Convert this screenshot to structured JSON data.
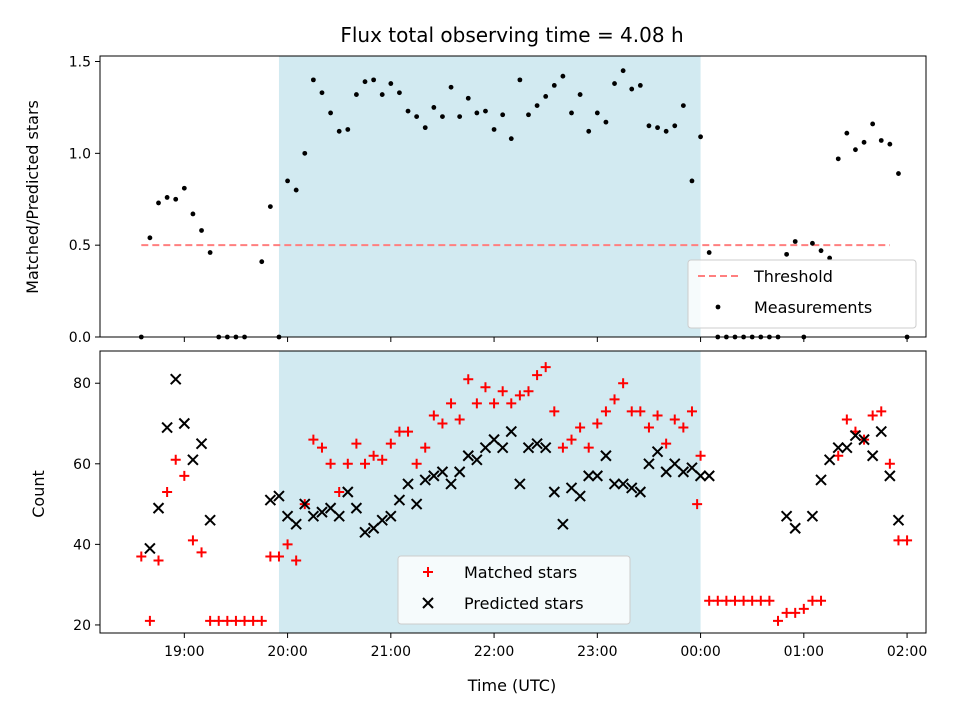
{
  "title": "Flux total observing time = 4.08 h",
  "colors": {
    "shade": "#add8e6",
    "threshold": "#ff7f7f",
    "measurement": "#000000",
    "matched": "#ff0000",
    "predicted": "#000000"
  },
  "chart_data": [
    {
      "type": "scatter",
      "ylabel": "Matched/Predicted stars",
      "xlabel": "",
      "ylim": [
        0,
        1.53
      ],
      "yticks": [
        "0.0",
        "0.5",
        "1.0",
        "1.5"
      ],
      "ytick_values": [
        0,
        0.5,
        1.0,
        1.5
      ],
      "shaded_interval": [
        "19:55",
        "00:00"
      ],
      "legend_position": "lower right",
      "legend": [
        "Threshold",
        "Measurements"
      ],
      "threshold": {
        "name": "Threshold",
        "value": 0.5,
        "x_range": [
          "18:35",
          "01:50"
        ],
        "style": "dashed"
      },
      "series": [
        {
          "name": "Measurements",
          "marker": "dot",
          "points": [
            [
              "18:35",
              0.0
            ],
            [
              "18:40",
              0.54
            ],
            [
              "18:45",
              0.73
            ],
            [
              "18:50",
              0.76
            ],
            [
              "18:55",
              0.75
            ],
            [
              "19:00",
              0.81
            ],
            [
              "19:05",
              0.67
            ],
            [
              "19:10",
              0.58
            ],
            [
              "19:15",
              0.46
            ],
            [
              "19:20",
              0.0
            ],
            [
              "19:25",
              0.0
            ],
            [
              "19:30",
              0.0
            ],
            [
              "19:35",
              0.0
            ],
            [
              "19:45",
              0.41
            ],
            [
              "19:50",
              0.71
            ],
            [
              "19:55",
              0.0
            ],
            [
              "20:00",
              0.85
            ],
            [
              "20:05",
              0.8
            ],
            [
              "20:10",
              1.0
            ],
            [
              "20:15",
              1.4
            ],
            [
              "20:20",
              1.33
            ],
            [
              "20:25",
              1.22
            ],
            [
              "20:30",
              1.12
            ],
            [
              "20:35",
              1.13
            ],
            [
              "20:40",
              1.32
            ],
            [
              "20:45",
              1.39
            ],
            [
              "20:50",
              1.4
            ],
            [
              "20:55",
              1.32
            ],
            [
              "21:00",
              1.38
            ],
            [
              "21:05",
              1.33
            ],
            [
              "21:10",
              1.23
            ],
            [
              "21:15",
              1.2
            ],
            [
              "21:20",
              1.14
            ],
            [
              "21:25",
              1.25
            ],
            [
              "21:30",
              1.2
            ],
            [
              "21:35",
              1.36
            ],
            [
              "21:40",
              1.2
            ],
            [
              "21:45",
              1.3
            ],
            [
              "21:50",
              1.22
            ],
            [
              "21:55",
              1.23
            ],
            [
              "22:00",
              1.13
            ],
            [
              "22:05",
              1.21
            ],
            [
              "22:10",
              1.08
            ],
            [
              "22:15",
              1.4
            ],
            [
              "22:20",
              1.21
            ],
            [
              "22:25",
              1.26
            ],
            [
              "22:30",
              1.31
            ],
            [
              "22:35",
              1.37
            ],
            [
              "22:40",
              1.42
            ],
            [
              "22:45",
              1.22
            ],
            [
              "22:50",
              1.32
            ],
            [
              "22:55",
              1.12
            ],
            [
              "23:00",
              1.22
            ],
            [
              "23:05",
              1.17
            ],
            [
              "23:10",
              1.38
            ],
            [
              "23:15",
              1.45
            ],
            [
              "23:20",
              1.35
            ],
            [
              "23:25",
              1.37
            ],
            [
              "23:30",
              1.15
            ],
            [
              "23:35",
              1.14
            ],
            [
              "23:40",
              1.12
            ],
            [
              "23:45",
              1.15
            ],
            [
              "23:50",
              1.26
            ],
            [
              "23:55",
              0.85
            ],
            [
              "00:00",
              1.09
            ],
            [
              "00:05",
              0.46
            ],
            [
              "00:10",
              0.0
            ],
            [
              "00:15",
              0.0
            ],
            [
              "00:20",
              0.0
            ],
            [
              "00:25",
              0.0
            ],
            [
              "00:30",
              0.0
            ],
            [
              "00:35",
              0.0
            ],
            [
              "00:40",
              0.0
            ],
            [
              "00:45",
              0.0
            ],
            [
              "00:50",
              0.45
            ],
            [
              "00:55",
              0.52
            ],
            [
              "01:00",
              0.0
            ],
            [
              "01:05",
              0.51
            ],
            [
              "01:10",
              0.47
            ],
            [
              "01:15",
              0.43
            ],
            [
              "01:20",
              0.97
            ],
            [
              "01:25",
              1.11
            ],
            [
              "01:30",
              1.02
            ],
            [
              "01:35",
              1.06
            ],
            [
              "01:40",
              1.16
            ],
            [
              "01:45",
              1.07
            ],
            [
              "01:50",
              1.05
            ],
            [
              "01:55",
              0.89
            ],
            [
              "02:00",
              0.0
            ]
          ]
        }
      ]
    },
    {
      "type": "scatter",
      "ylabel": "Count",
      "xlabel": "Time (UTC)",
      "ylim": [
        18,
        88
      ],
      "yticks": [
        "20",
        "40",
        "60",
        "80"
      ],
      "ytick_values": [
        20,
        40,
        60,
        80
      ],
      "xticks": [
        "19:00",
        "20:00",
        "21:00",
        "22:00",
        "23:00",
        "00:00",
        "01:00",
        "02:00"
      ],
      "shaded_interval": [
        "19:55",
        "00:00"
      ],
      "legend_position": "lower center",
      "legend": [
        "Matched stars",
        "Predicted stars"
      ],
      "series": [
        {
          "name": "Matched stars",
          "marker": "plus",
          "points": [
            [
              "18:35",
              37
            ],
            [
              "18:40",
              21
            ],
            [
              "18:45",
              36
            ],
            [
              "18:50",
              53
            ],
            [
              "18:55",
              61
            ],
            [
              "19:00",
              57
            ],
            [
              "19:05",
              41
            ],
            [
              "19:10",
              38
            ],
            [
              "19:15",
              21
            ],
            [
              "19:20",
              21
            ],
            [
              "19:25",
              21
            ],
            [
              "19:30",
              21
            ],
            [
              "19:35",
              21
            ],
            [
              "19:40",
              21
            ],
            [
              "19:45",
              21
            ],
            [
              "19:50",
              37
            ],
            [
              "19:55",
              37
            ],
            [
              "20:00",
              40
            ],
            [
              "20:05",
              36
            ],
            [
              "20:10",
              50
            ],
            [
              "20:15",
              66
            ],
            [
              "20:20",
              64
            ],
            [
              "20:25",
              60
            ],
            [
              "20:30",
              53
            ],
            [
              "20:35",
              60
            ],
            [
              "20:40",
              65
            ],
            [
              "20:45",
              60
            ],
            [
              "20:50",
              62
            ],
            [
              "20:55",
              61
            ],
            [
              "21:00",
              65
            ],
            [
              "21:05",
              68
            ],
            [
              "21:10",
              68
            ],
            [
              "21:15",
              60
            ],
            [
              "21:20",
              64
            ],
            [
              "21:25",
              72
            ],
            [
              "21:30",
              70
            ],
            [
              "21:35",
              75
            ],
            [
              "21:40",
              71
            ],
            [
              "21:45",
              81
            ],
            [
              "21:50",
              75
            ],
            [
              "21:55",
              79
            ],
            [
              "22:00",
              75
            ],
            [
              "22:05",
              78
            ],
            [
              "22:10",
              75
            ],
            [
              "22:15",
              77
            ],
            [
              "22:20",
              78
            ],
            [
              "22:25",
              82
            ],
            [
              "22:30",
              84
            ],
            [
              "22:35",
              73
            ],
            [
              "22:40",
              64
            ],
            [
              "22:45",
              66
            ],
            [
              "22:50",
              69
            ],
            [
              "22:55",
              64
            ],
            [
              "23:00",
              70
            ],
            [
              "23:05",
              73
            ],
            [
              "23:10",
              76
            ],
            [
              "23:15",
              80
            ],
            [
              "23:20",
              73
            ],
            [
              "23:25",
              73
            ],
            [
              "23:30",
              69
            ],
            [
              "23:35",
              72
            ],
            [
              "23:40",
              65
            ],
            [
              "23:45",
              71
            ],
            [
              "23:50",
              69
            ],
            [
              "23:55",
              73
            ],
            [
              "23:58",
              50
            ],
            [
              "00:00",
              62
            ],
            [
              "00:05",
              26
            ],
            [
              "00:10",
              26
            ],
            [
              "00:15",
              26
            ],
            [
              "00:20",
              26
            ],
            [
              "00:25",
              26
            ],
            [
              "00:30",
              26
            ],
            [
              "00:35",
              26
            ],
            [
              "00:40",
              26
            ],
            [
              "00:45",
              21
            ],
            [
              "00:50",
              23
            ],
            [
              "00:55",
              23
            ],
            [
              "01:00",
              24
            ],
            [
              "01:05",
              26
            ],
            [
              "01:10",
              26
            ],
            [
              "01:20",
              62
            ],
            [
              "01:25",
              71
            ],
            [
              "01:30",
              68
            ],
            [
              "01:35",
              66
            ],
            [
              "01:40",
              72
            ],
            [
              "01:45",
              73
            ],
            [
              "01:50",
              60
            ],
            [
              "01:55",
              41
            ],
            [
              "02:00",
              41
            ]
          ]
        },
        {
          "name": "Predicted stars",
          "marker": "x",
          "points": [
            [
              "18:40",
              39
            ],
            [
              "18:45",
              49
            ],
            [
              "18:50",
              69
            ],
            [
              "18:55",
              81
            ],
            [
              "19:00",
              70
            ],
            [
              "19:05",
              61
            ],
            [
              "19:10",
              65
            ],
            [
              "19:15",
              46
            ],
            [
              "19:50",
              51
            ],
            [
              "19:55",
              52
            ],
            [
              "20:00",
              47
            ],
            [
              "20:05",
              45
            ],
            [
              "20:10",
              50
            ],
            [
              "20:15",
              47
            ],
            [
              "20:20",
              48
            ],
            [
              "20:25",
              49
            ],
            [
              "20:30",
              47
            ],
            [
              "20:35",
              53
            ],
            [
              "20:40",
              49
            ],
            [
              "20:45",
              43
            ],
            [
              "20:50",
              44
            ],
            [
              "20:55",
              46
            ],
            [
              "21:00",
              47
            ],
            [
              "21:05",
              51
            ],
            [
              "21:10",
              55
            ],
            [
              "21:15",
              50
            ],
            [
              "21:20",
              56
            ],
            [
              "21:25",
              57
            ],
            [
              "21:30",
              58
            ],
            [
              "21:35",
              55
            ],
            [
              "21:40",
              58
            ],
            [
              "21:45",
              62
            ],
            [
              "21:50",
              61
            ],
            [
              "21:55",
              64
            ],
            [
              "22:00",
              66
            ],
            [
              "22:05",
              64
            ],
            [
              "22:10",
              68
            ],
            [
              "22:15",
              55
            ],
            [
              "22:20",
              64
            ],
            [
              "22:25",
              65
            ],
            [
              "22:30",
              64
            ],
            [
              "22:35",
              53
            ],
            [
              "22:40",
              45
            ],
            [
              "22:45",
              54
            ],
            [
              "22:50",
              52
            ],
            [
              "22:55",
              57
            ],
            [
              "23:00",
              57
            ],
            [
              "23:05",
              62
            ],
            [
              "23:10",
              55
            ],
            [
              "23:15",
              55
            ],
            [
              "23:20",
              54
            ],
            [
              "23:25",
              53
            ],
            [
              "23:30",
              60
            ],
            [
              "23:35",
              63
            ],
            [
              "23:40",
              58
            ],
            [
              "23:45",
              60
            ],
            [
              "23:50",
              58
            ],
            [
              "23:55",
              59
            ],
            [
              "00:00",
              57
            ],
            [
              "00:05",
              57
            ],
            [
              "00:50",
              47
            ],
            [
              "00:55",
              44
            ],
            [
              "01:05",
              47
            ],
            [
              "01:10",
              56
            ],
            [
              "01:15",
              61
            ],
            [
              "01:20",
              64
            ],
            [
              "01:25",
              64
            ],
            [
              "01:30",
              67
            ],
            [
              "01:35",
              66
            ],
            [
              "01:40",
              62
            ],
            [
              "01:45",
              68
            ],
            [
              "01:50",
              57
            ],
            [
              "01:55",
              46
            ]
          ]
        }
      ]
    }
  ]
}
